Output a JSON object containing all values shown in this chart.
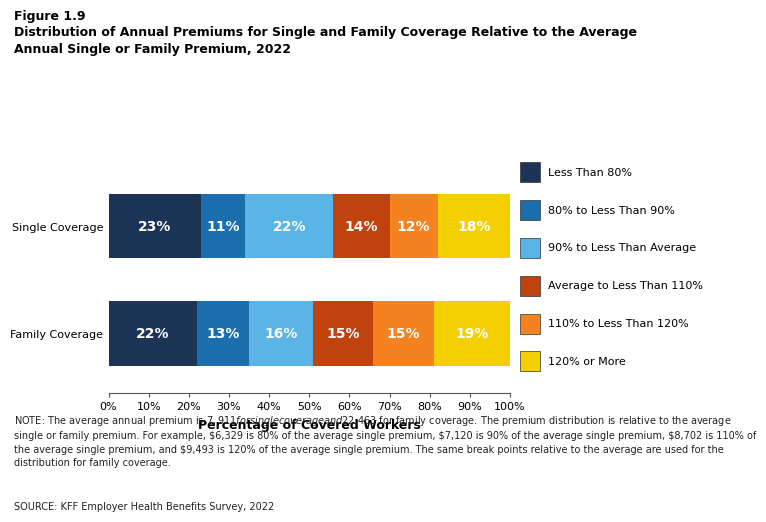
{
  "title_line1": "Figure 1.9",
  "title_line2": "Distribution of Annual Premiums for Single and Family Coverage Relative to the Average\nAnnual Single or Family Premium, 2022",
  "categories": [
    "Single Coverage",
    "Family Coverage"
  ],
  "segments": [
    {
      "label": "Less Than 80%",
      "color": "#1c3557",
      "values": [
        23,
        22
      ]
    },
    {
      "label": "80% to Less Than 90%",
      "color": "#1b6fae",
      "values": [
        11,
        13
      ]
    },
    {
      "label": "90% to Less Than Average",
      "color": "#5ab4e5",
      "values": [
        22,
        16
      ]
    },
    {
      "label": "Average to Less Than 110%",
      "color": "#c0420d",
      "values": [
        14,
        15
      ]
    },
    {
      "label": "110% to Less Than 120%",
      "color": "#f4831f",
      "values": [
        12,
        15
      ]
    },
    {
      "label": "120% or More",
      "color": "#f5d000",
      "values": [
        18,
        19
      ]
    }
  ],
  "xlabel": "Percentage of Covered Workers",
  "xlim": [
    0,
    100
  ],
  "xticks": [
    0,
    10,
    20,
    30,
    40,
    50,
    60,
    70,
    80,
    90,
    100
  ],
  "xtick_labels": [
    "0%",
    "10%",
    "20%",
    "30%",
    "40%",
    "50%",
    "60%",
    "70%",
    "80%",
    "90%",
    "100%"
  ],
  "note": "NOTE: The average annual premium is $7,911 for single coverage and $22,463 for family coverage. The premium distribution is relative to the average\nsingle or family premium. For example, $6,329 is 80% of the average single premium, $7,120 is 90% of the average single premium, $8,702 is 110% of\nthe average single premium, and $9,493 is 120% of the average single premium. The same break points relative to the average are used for the\ndistribution for family coverage.",
  "source": "SOURCE: KFF Employer Health Benefits Survey, 2022",
  "text_color_light": "#ffffff",
  "text_color_dark": "#000000",
  "background_color": "#ffffff",
  "bar_height": 0.6,
  "bar_text_fontsize": 10,
  "legend_fontsize": 8,
  "note_fontsize": 7,
  "ytick_fontsize": 8,
  "xtick_fontsize": 8,
  "xlabel_fontsize": 9
}
